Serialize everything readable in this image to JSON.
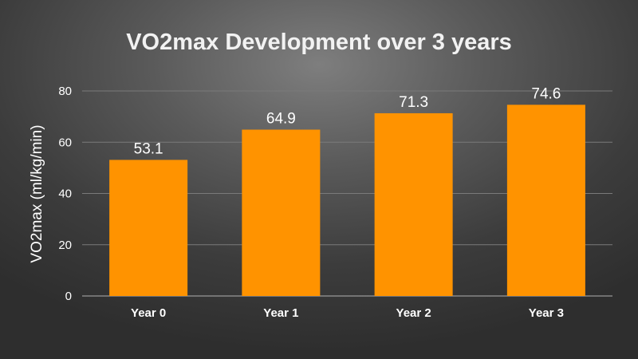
{
  "chart_data": {
    "type": "bar",
    "title": "VO2max Development over 3 years",
    "xlabel": "",
    "ylabel": "VO2max (ml/kg/min)",
    "categories": [
      "Year 0",
      "Year 1",
      "Year 2",
      "Year 3"
    ],
    "values": [
      53.1,
      64.9,
      71.3,
      74.6
    ],
    "data_labels": [
      "53.1",
      "64.9",
      "71.3",
      "74.6"
    ],
    "ylim": [
      0,
      80
    ],
    "yticks": [
      0,
      20,
      40,
      60,
      80
    ],
    "grid": true,
    "legend": "none",
    "colors": {
      "bar": "#ff9300",
      "text": "#ffffff",
      "grid": "#7a7a7a"
    }
  }
}
